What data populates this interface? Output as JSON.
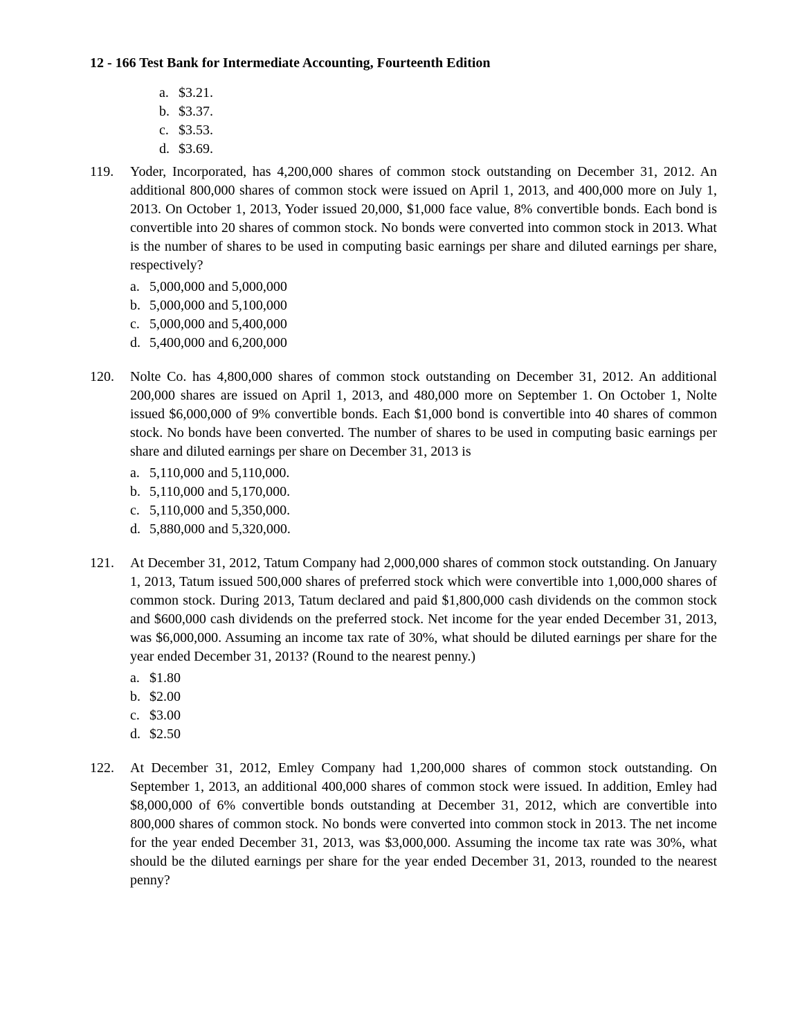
{
  "header": "12 - 166  Test Bank for Intermediate Accounting, Fourteenth Edition",
  "orphan_options": {
    "a": "$3.21.",
    "b": "$3.37.",
    "c": "$3.53.",
    "d": "$3.69."
  },
  "questions": [
    {
      "number": "119.",
      "text": "Yoder, Incorporated, has 4,200,000 shares of common stock outstanding on December 31, 2012. An additional 800,000 shares of common stock were issued on April 1, 2013, and 400,000 more on July 1, 2013. On October 1, 2013, Yoder issued 20,000, $1,000 face value, 8% convertible bonds. Each bond is convertible into 20 shares of common stock. No bonds were converted into common stock in 2013. What is the number of shares to be used in computing basic earnings per share and diluted earnings per share, respectively?",
      "options": {
        "a": "5,000,000 and 5,000,000",
        "b": "5,000,000 and 5,100,000",
        "c": "5,000,000 and 5,400,000",
        "d": "5,400,000 and 6,200,000"
      }
    },
    {
      "number": "120.",
      "text": "Nolte Co. has 4,800,000 shares of common stock outstanding on December 31, 2012. An additional 200,000 shares are issued on April 1, 2013, and 480,000 more on September 1. On October 1, Nolte issued $6,000,000 of 9% convertible bonds. Each $1,000 bond is convertible into 40 shares of common stock. No bonds have been converted. The number of shares to be used in computing basic earnings per share and diluted earnings per share on December 31, 2013 is",
      "options": {
        "a": "5,110,000 and 5,110,000.",
        "b": "5,110,000 and 5,170,000.",
        "c": "5,110,000 and 5,350,000.",
        "d": "5,880,000 and 5,320,000."
      }
    },
    {
      "number": "121.",
      "text": "At December 31, 2012, Tatum Company had 2,000,000 shares of common stock outstanding. On January 1, 2013, Tatum issued 500,000 shares of preferred stock which were convertible into 1,000,000 shares of common stock. During 2013, Tatum declared and paid $1,800,000 cash dividends on the common stock and $600,000 cash dividends on the preferred stock. Net income for the year ended December 31, 2013, was $6,000,000. Assuming an income tax rate of 30%, what should be diluted earnings per share for the year ended December 31, 2013? (Round to the nearest penny.)",
      "options": {
        "a": "$1.80",
        "b": "$2.00",
        "c": "$3.00",
        "d": "$2.50"
      }
    },
    {
      "number": "122.",
      "text": "At December 31, 2012, Emley Company had 1,200,000 shares of common stock outstanding. On September 1, 2013, an additional 400,000 shares of common stock were issued. In addition, Emley had $8,000,000 of 6% convertible bonds outstanding at December 31, 2012, which are convertible into 800,000 shares of common stock. No bonds were converted into common stock in 2013. The net income for the year ended December 31, 2013, was $3,000,000. Assuming the income tax rate was 30%, what should be the diluted earnings per share for the year ended December 31, 2013, rounded to the nearest penny?",
      "options": null
    }
  ]
}
